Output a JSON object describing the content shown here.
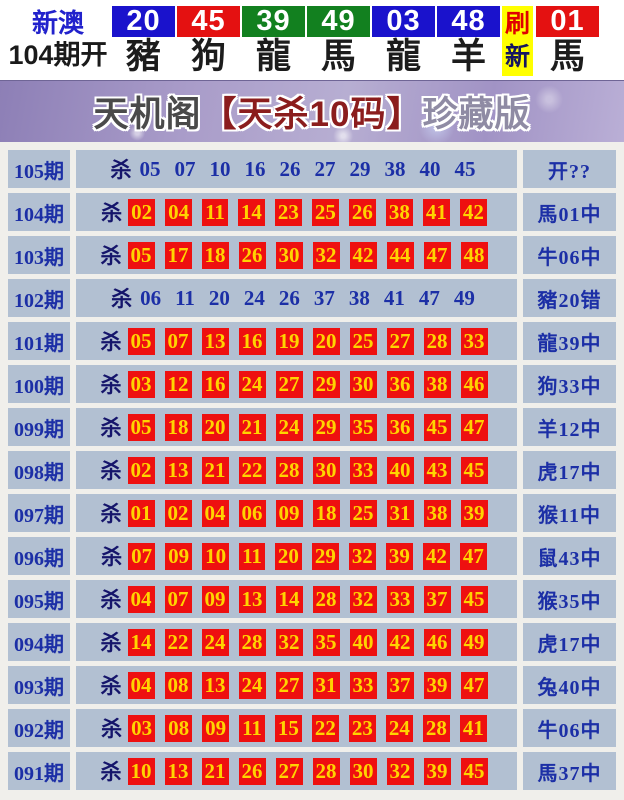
{
  "header": {
    "region": "新澳",
    "draw_label": "104期开",
    "balls": [
      {
        "num": "20",
        "zodiac": "豬",
        "color": "#1a12cc"
      },
      {
        "num": "45",
        "zodiac": "狗",
        "color": "#e41111"
      },
      {
        "num": "39",
        "zodiac": "龍",
        "color": "#12801f"
      },
      {
        "num": "49",
        "zodiac": "馬",
        "color": "#12801f"
      },
      {
        "num": "03",
        "zodiac": "龍",
        "color": "#1a12cc"
      },
      {
        "num": "48",
        "zodiac": "羊",
        "color": "#1a12cc"
      }
    ],
    "refresh": {
      "line1": "刷",
      "line2": "新",
      "bg_color": "#ffff00"
    },
    "last_ball": {
      "num": "01",
      "zodiac": "馬",
      "color": "#e41111"
    }
  },
  "title": {
    "part1": "天机阁",
    "part2": "【天杀10码】",
    "part3": "珍藏版"
  },
  "table": {
    "kill_prefix": "杀",
    "highlight_bg": "#ee1010",
    "highlight_text": "#ffd400",
    "cell_bg": "#b2c0d2",
    "text_color": "#1c2fa6",
    "rows": [
      {
        "period": "105期",
        "numbers": [
          "05",
          "07",
          "10",
          "16",
          "26",
          "27",
          "29",
          "38",
          "40",
          "45"
        ],
        "highlighted": false,
        "result": "开??"
      },
      {
        "period": "104期",
        "numbers": [
          "02",
          "04",
          "11",
          "14",
          "23",
          "25",
          "26",
          "38",
          "41",
          "42"
        ],
        "highlighted": true,
        "result": "馬01中"
      },
      {
        "period": "103期",
        "numbers": [
          "05",
          "17",
          "18",
          "26",
          "30",
          "32",
          "42",
          "44",
          "47",
          "48"
        ],
        "highlighted": true,
        "result": "牛06中"
      },
      {
        "period": "102期",
        "numbers": [
          "06",
          "11",
          "20",
          "24",
          "26",
          "37",
          "38",
          "41",
          "47",
          "49"
        ],
        "highlighted": false,
        "result": "豬20错"
      },
      {
        "period": "101期",
        "numbers": [
          "05",
          "07",
          "13",
          "16",
          "19",
          "20",
          "25",
          "27",
          "28",
          "33"
        ],
        "highlighted": true,
        "result": "龍39中"
      },
      {
        "period": "100期",
        "numbers": [
          "03",
          "12",
          "16",
          "24",
          "27",
          "29",
          "30",
          "36",
          "38",
          "46"
        ],
        "highlighted": true,
        "result": "狗33中"
      },
      {
        "period": "099期",
        "numbers": [
          "05",
          "18",
          "20",
          "21",
          "24",
          "29",
          "35",
          "36",
          "45",
          "47"
        ],
        "highlighted": true,
        "result": "羊12中"
      },
      {
        "period": "098期",
        "numbers": [
          "02",
          "13",
          "21",
          "22",
          "28",
          "30",
          "33",
          "40",
          "43",
          "45"
        ],
        "highlighted": true,
        "result": "虎17中"
      },
      {
        "period": "097期",
        "numbers": [
          "01",
          "02",
          "04",
          "06",
          "09",
          "18",
          "25",
          "31",
          "38",
          "39"
        ],
        "highlighted": true,
        "result": "猴11中"
      },
      {
        "period": "096期",
        "numbers": [
          "07",
          "09",
          "10",
          "11",
          "20",
          "29",
          "32",
          "39",
          "42",
          "47"
        ],
        "highlighted": true,
        "result": "鼠43中"
      },
      {
        "period": "095期",
        "numbers": [
          "04",
          "07",
          "09",
          "13",
          "14",
          "28",
          "32",
          "33",
          "37",
          "45"
        ],
        "highlighted": true,
        "result": "猴35中"
      },
      {
        "period": "094期",
        "numbers": [
          "14",
          "22",
          "24",
          "28",
          "32",
          "35",
          "40",
          "42",
          "46",
          "49"
        ],
        "highlighted": true,
        "result": "虎17中"
      },
      {
        "period": "093期",
        "numbers": [
          "04",
          "08",
          "13",
          "24",
          "27",
          "31",
          "33",
          "37",
          "39",
          "47"
        ],
        "highlighted": true,
        "result": "兔40中"
      },
      {
        "period": "092期",
        "numbers": [
          "03",
          "08",
          "09",
          "11",
          "15",
          "22",
          "23",
          "24",
          "28",
          "41"
        ],
        "highlighted": true,
        "result": "牛06中"
      },
      {
        "period": "091期",
        "numbers": [
          "10",
          "13",
          "21",
          "26",
          "27",
          "28",
          "30",
          "32",
          "39",
          "45"
        ],
        "highlighted": true,
        "result": "馬37中"
      }
    ]
  }
}
